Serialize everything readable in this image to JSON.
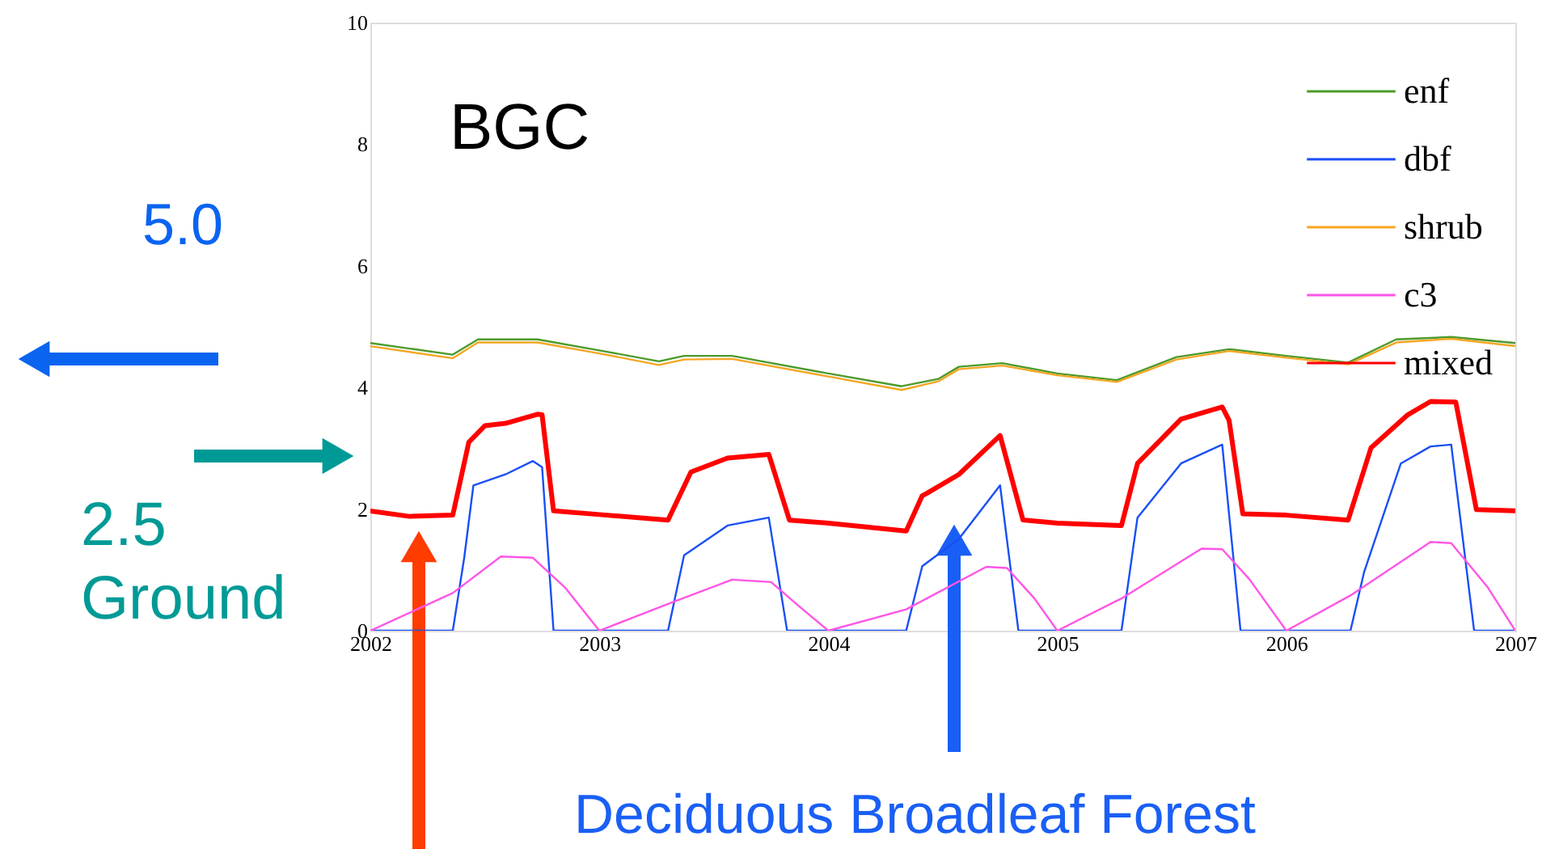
{
  "chart_data": {
    "type": "line",
    "xlim": [
      2002,
      2007
    ],
    "xticks": [
      2002,
      2003,
      2004,
      2005,
      2006,
      2007
    ],
    "ylim": [
      0,
      10
    ],
    "yticks": [
      0,
      2,
      4,
      6,
      8,
      10
    ],
    "grid": false,
    "legend": "top right",
    "annotations": [
      "BGC",
      "5.0",
      "2.5\nGround",
      "Deciduous Broadleaf Forest"
    ],
    "series": [
      {
        "name": "enf",
        "color": "#4c9a2a",
        "x": [
          2002,
          2002.36,
          2002.47,
          2002.73,
          2003,
          2003.26,
          2003.37,
          2003.58,
          2004,
          2004.32,
          2004.48,
          2004.57,
          2004.76,
          2005,
          2005.26,
          2005.52,
          2005.75,
          2006,
          2006.27,
          2006.48,
          2006.72,
          2007
        ],
        "values": [
          4.73,
          4.54,
          4.79,
          4.79,
          4.61,
          4.43,
          4.52,
          4.52,
          4.23,
          4.02,
          4.14,
          4.34,
          4.4,
          4.23,
          4.12,
          4.5,
          4.63,
          4.52,
          4.41,
          4.79,
          4.83,
          4.73
        ]
      },
      {
        "name": "dbf",
        "color": "#1a4ff5",
        "x": [
          2002,
          2002.36,
          2002.41,
          2002.45,
          2002.59,
          2002.71,
          2002.75,
          2002.8,
          2003.3,
          2003.37,
          2003.56,
          2003.74,
          2003.82,
          2004.34,
          2004.41,
          2004.57,
          2004.75,
          2004.83,
          2005.28,
          2005.35,
          2005.54,
          2005.72,
          2005.8,
          2006.28,
          2006.34,
          2006.5,
          2006.63,
          2006.72,
          2006.82,
          2007
        ],
        "values": [
          0,
          0,
          1.2,
          2.39,
          2.57,
          2.79,
          2.69,
          0,
          0,
          1.24,
          1.73,
          1.86,
          0,
          0,
          1.06,
          1.51,
          2.39,
          0,
          0,
          1.86,
          2.75,
          3.06,
          0,
          0,
          0.97,
          2.75,
          3.03,
          3.06,
          0,
          0
        ]
      },
      {
        "name": "shrub",
        "color": "#f5a623",
        "x": [
          2002,
          2002.36,
          2002.47,
          2002.73,
          2003,
          2003.26,
          2003.37,
          2003.58,
          2004,
          2004.32,
          2004.48,
          2004.57,
          2004.76,
          2005,
          2005.26,
          2005.52,
          2005.75,
          2006,
          2006.27,
          2006.48,
          2006.72,
          2007
        ],
        "values": [
          4.68,
          4.48,
          4.74,
          4.74,
          4.56,
          4.37,
          4.46,
          4.47,
          4.18,
          3.96,
          4.1,
          4.3,
          4.36,
          4.2,
          4.09,
          4.46,
          4.6,
          4.49,
          4.38,
          4.74,
          4.8,
          4.68
        ]
      },
      {
        "name": "c3",
        "color": "#ff55e6",
        "x": [
          2002,
          2002.36,
          2002.57,
          2002.71,
          2002.85,
          2003,
          2003.3,
          2003.58,
          2003.75,
          2003.86,
          2004,
          2004.34,
          2004.69,
          2004.78,
          2004.9,
          2005,
          2005.28,
          2005.63,
          2005.72,
          2005.84,
          2006,
          2006.28,
          2006.63,
          2006.72,
          2006.88,
          2007
        ],
        "values": [
          0,
          0.62,
          1.22,
          1.2,
          0.71,
          0,
          0.44,
          0.84,
          0.8,
          0.44,
          0,
          0.35,
          1.05,
          1.03,
          0.53,
          0,
          0.53,
          1.35,
          1.34,
          0.84,
          0,
          0.58,
          1.46,
          1.44,
          0.71,
          0
        ]
      },
      {
        "name": "mixed",
        "color": "#ff0000",
        "x": [
          2002,
          2002.17,
          2002.36,
          2002.43,
          2002.5,
          2002.59,
          2002.73,
          2002.75,
          2002.8,
          2003,
          2003.3,
          2003.4,
          2003.56,
          2003.74,
          2003.83,
          2004,
          2004.34,
          2004.41,
          2004.43,
          2004.57,
          2004.75,
          2004.85,
          2005,
          2005.28,
          2005.35,
          2005.54,
          2005.72,
          2005.75,
          2005.81,
          2006,
          2006.27,
          2006.37,
          2006.53,
          2006.63,
          2006.74,
          2006.83,
          2007
        ],
        "values": [
          1.97,
          1.88,
          1.9,
          3.1,
          3.37,
          3.41,
          3.56,
          3.55,
          1.97,
          1.91,
          1.82,
          2.61,
          2.84,
          2.9,
          1.82,
          1.77,
          1.64,
          2.22,
          2.26,
          2.57,
          3.21,
          1.82,
          1.77,
          1.73,
          2.75,
          3.48,
          3.68,
          3.46,
          1.92,
          1.9,
          1.82,
          3.01,
          3.55,
          3.77,
          3.76,
          1.99,
          1.97
        ]
      }
    ]
  }
}
